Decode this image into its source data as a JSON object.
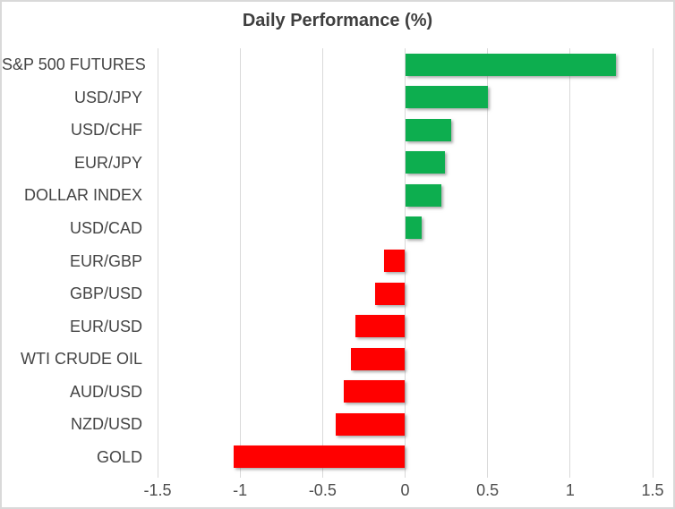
{
  "chart": {
    "title": "Daily Performance (%)"
  },
  "chart_data": {
    "type": "bar",
    "orientation": "horizontal",
    "title": "Daily Performance (%)",
    "xlabel": "",
    "ylabel": "",
    "categories": [
      "S&P 500 FUTURES",
      "USD/JPY",
      "USD/CHF",
      "EUR/JPY",
      "DOLLAR INDEX",
      "USD/CAD",
      "EUR/GBP",
      "GBP/USD",
      "EUR/USD",
      "WTI CRUDE OIL",
      "AUD/USD",
      "NZD/USD",
      "GOLD"
    ],
    "values": [
      1.28,
      0.5,
      0.28,
      0.24,
      0.22,
      0.1,
      -0.13,
      -0.18,
      -0.3,
      -0.33,
      -0.37,
      -0.42,
      -1.04
    ],
    "xlim": [
      -1.5,
      1.5
    ],
    "tick_values": [
      -1.5,
      -1,
      -0.5,
      0,
      0.5,
      1,
      1.5
    ],
    "tick_labels": [
      "-1.5",
      "-1",
      "-0.5",
      "0",
      "0.5",
      "1",
      "1.5"
    ],
    "grid": true,
    "legend": "none",
    "colors": {
      "positive": "#0DAE4F",
      "negative": "#FF0000",
      "gridline": "#D9D9D9",
      "border": "#D9D9D9",
      "title_text": "#3F3F3F",
      "axis_text": "#4D4D4D",
      "category_text": "#444444",
      "background": "#FFFFFF"
    }
  }
}
